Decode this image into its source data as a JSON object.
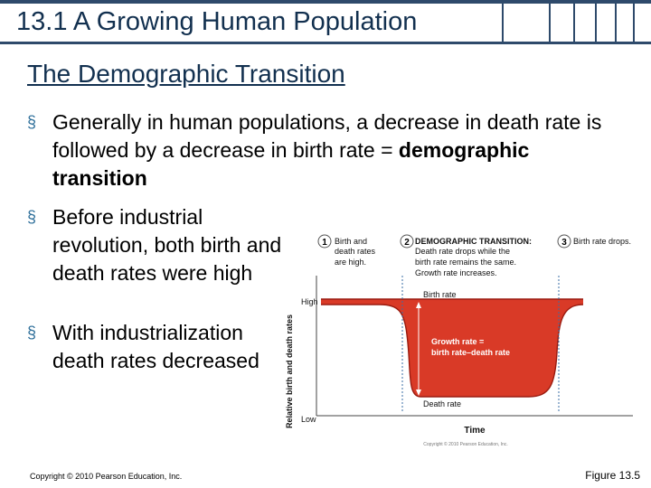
{
  "slide": {
    "title": "13.1 A Growing Human Population",
    "subtitle": "The Demographic Transition",
    "bullet1_text": "Generally in human populations, a decrease in death rate is followed by a decrease in birth rate = ",
    "bullet1_bold": "demographic transition",
    "bullet2": "Before industrial revolution, both birth and death rates were high",
    "bullet3": "With industrialization death rates decreased",
    "bullet_marker": "§",
    "copyright": "Copyright © 2010 Pearson Education, Inc.",
    "figure_label": "Figure 13.5"
  },
  "diagram": {
    "stage1_num": "1",
    "stage1_line1": "Birth and",
    "stage1_line2": "death rates",
    "stage1_line3": "are high.",
    "stage2_num": "2",
    "stage2_line1": "DEMOGRAPHIC TRANSITION:",
    "stage2_line2": "Death rate drops while the",
    "stage2_line3": "birth rate remains the same.",
    "stage2_line4": "Growth rate increases.",
    "stage3_num": "3",
    "stage3_text": "Birth rate drops.",
    "y_axis_label": "Relative birth and death rates",
    "high_label": "High",
    "low_label": "Low",
    "x_axis_label": "Time",
    "birth_rate_label": "Birth rate",
    "death_rate_label": "Death rate",
    "growth_line1": "Growth rate =",
    "growth_line2": "birth rate–death rate",
    "fig_copyright": "Copyright © 2010 Pearson Education, Inc.",
    "fill_color": "#d93a27",
    "line_color": "#9a1b10"
  }
}
